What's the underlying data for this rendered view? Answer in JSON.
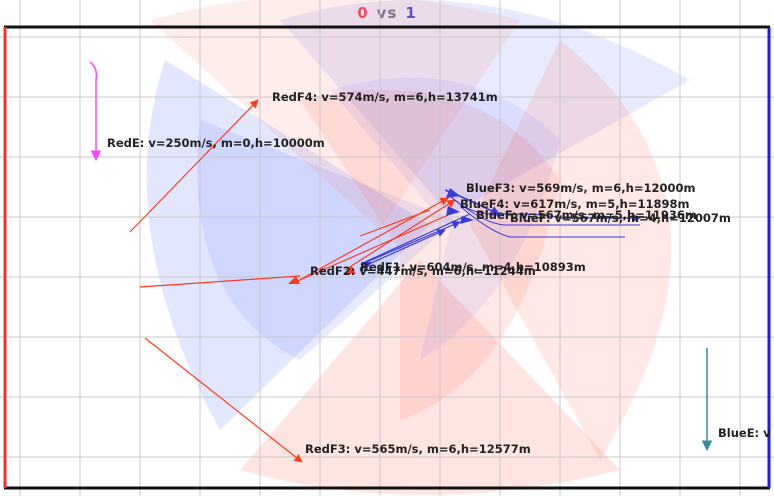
{
  "score": {
    "red": "0",
    "vs": "vs",
    "blue": "1"
  },
  "colors": {
    "red_team": "#ff3b1f",
    "blue_team": "#3a3ad6",
    "red_border": "#ff2a2a",
    "blue_border": "#1a1aee",
    "grid": "#c8c8c8",
    "radar_red": "#ff7060",
    "radar_blue": "#7080ff",
    "red_e_marker": "#ff44ff",
    "blue_e_marker": "#3a8aa0"
  },
  "units": [
    {
      "id": "red-f4",
      "team": "red",
      "label": "RedF4: v=574m/s, m=6,h=13741m"
    },
    {
      "id": "red-e",
      "team": "red",
      "label": "RedE: v=250m/s, m=0,h=10000m"
    },
    {
      "id": "blue-f3",
      "team": "blue",
      "label": "BlueF3: v=569m/s, m=6,h=12000m"
    },
    {
      "id": "blue-f4",
      "team": "blue",
      "label": "BlueF4: v=617m/s, m=5,h=11898m"
    },
    {
      "id": "blue-f-overlap",
      "team": "blue",
      "label": "BlueF: v=567m/s, m=5,h=11936m"
    },
    {
      "id": "blue-f-overlap-2",
      "team": "blue",
      "label": "BlueF: v=567m/s, m=4,h=12007m"
    },
    {
      "id": "red-f2",
      "team": "red",
      "label": "RedF2: v=447m/s, m=6,h=11244m"
    },
    {
      "id": "red-f1",
      "team": "red",
      "label": "RedF1: v=604m/s, m=4,h=10893m"
    },
    {
      "id": "red-f3",
      "team": "red",
      "label": "RedF3: v=565m/s, m=6,h=12577m"
    },
    {
      "id": "blue-e",
      "team": "blue",
      "label": "BlueE: v"
    }
  ]
}
